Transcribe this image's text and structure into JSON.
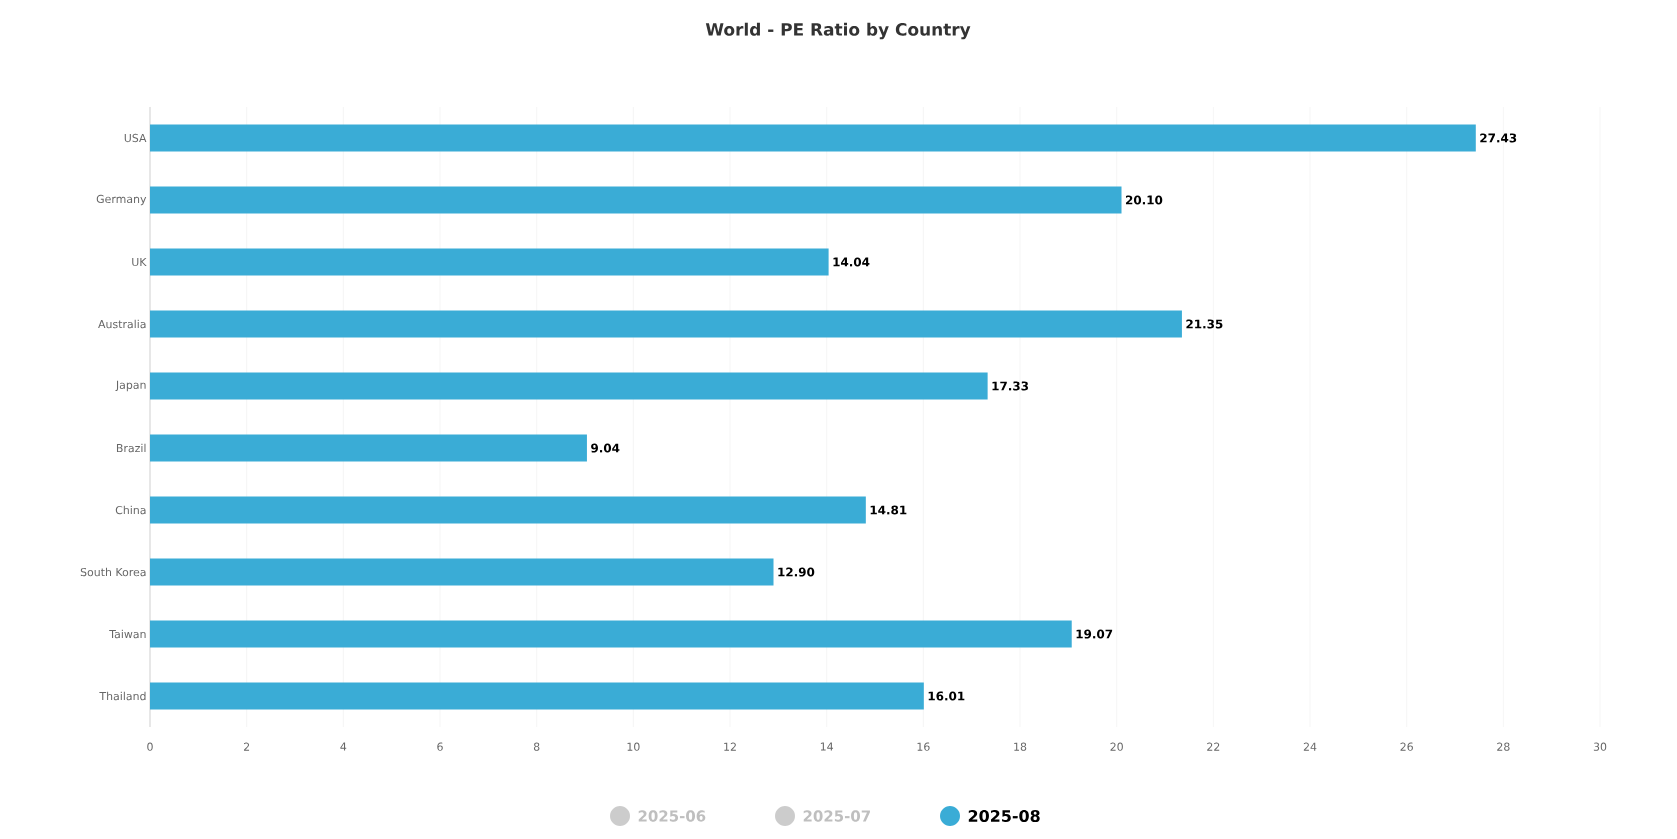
{
  "chart_data": {
    "type": "bar",
    "orientation": "horizontal",
    "title": "World - PE Ratio by Country",
    "categories": [
      "USA",
      "Germany",
      "UK",
      "Australia",
      "Japan",
      "Brazil",
      "China",
      "South Korea",
      "Taiwan",
      "Thailand"
    ],
    "series": [
      {
        "name": "2025-06",
        "color": "#cccccc",
        "values": [
          null,
          null,
          null,
          null,
          null,
          null,
          null,
          null,
          null,
          null
        ]
      },
      {
        "name": "2025-07",
        "color": "#cccccc",
        "values": [
          null,
          null,
          null,
          null,
          null,
          null,
          null,
          null,
          null,
          null
        ]
      },
      {
        "name": "2025-08",
        "color": "#3aacd6",
        "values": [
          27.43,
          20.1,
          14.04,
          21.35,
          17.33,
          9.04,
          14.81,
          12.9,
          19.07,
          16.01
        ],
        "value_labels": [
          "27.43",
          "20.10",
          "14.04",
          "21.35",
          "17.33",
          "9.04",
          "14.81",
          "12.90",
          "19.07",
          "16.01"
        ]
      }
    ],
    "xlim": [
      0,
      30
    ],
    "xticks": [
      0,
      2,
      4,
      6,
      8,
      10,
      12,
      14,
      16,
      18,
      20,
      22,
      24,
      26,
      28,
      30
    ],
    "grid": "x",
    "legend": "bottom"
  }
}
